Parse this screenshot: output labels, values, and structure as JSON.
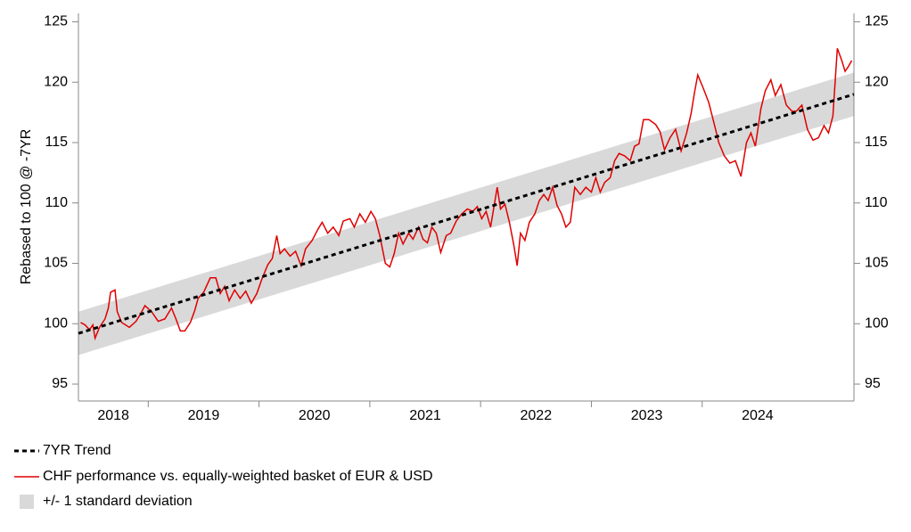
{
  "chart_data": {
    "type": "line",
    "ylabel": "Rebased to 100 @ -7YR",
    "xlim": [
      2018.37,
      2025.37
    ],
    "xticks": [
      {
        "value": 2018,
        "label": "2018"
      },
      {
        "value": 2019,
        "label": "2019"
      },
      {
        "value": 2020,
        "label": "2020"
      },
      {
        "value": 2021,
        "label": "2021"
      },
      {
        "value": 2022,
        "label": "2022"
      },
      {
        "value": 2023,
        "label": "2023"
      },
      {
        "value": 2024,
        "label": "2024"
      }
    ],
    "ylim": [
      93.6,
      125.7
    ],
    "yticks": [
      95,
      100,
      105,
      110,
      115,
      120,
      125
    ],
    "y2lim": [
      93.6,
      125.7
    ],
    "y2ticks": [
      95,
      100,
      105,
      110,
      115,
      120,
      125
    ],
    "band": {
      "name": "+/- 1 standard deviation",
      "color": "#d9d9d9",
      "x": [
        2018.37,
        2025.37
      ],
      "upper": [
        101.0,
        120.8
      ],
      "lower": [
        97.4,
        117.2
      ]
    },
    "series": [
      {
        "name": "7YR Trend",
        "color": "#000000",
        "dashed": true,
        "x": [
          2018.37,
          2025.37
        ],
        "values": [
          99.2,
          119.0
        ]
      },
      {
        "name": "CHF performance vs. equally-weighted basket of EUR & USD",
        "color": "#e00000",
        "dashed": false,
        "x": [
          2018.39,
          2018.43,
          2018.47,
          2018.5,
          2018.52,
          2018.56,
          2018.61,
          2018.64,
          2018.66,
          2018.7,
          2018.72,
          2018.76,
          2018.83,
          2018.89,
          2018.93,
          2018.97,
          2019.03,
          2019.09,
          2019.15,
          2019.21,
          2019.25,
          2019.29,
          2019.33,
          2019.38,
          2019.42,
          2019.45,
          2019.5,
          2019.56,
          2019.61,
          2019.65,
          2019.69,
          2019.73,
          2019.78,
          2019.83,
          2019.88,
          2019.93,
          2019.98,
          2020.03,
          2020.08,
          2020.12,
          2020.16,
          2020.19,
          2020.23,
          2020.28,
          2020.33,
          2020.38,
          2020.42,
          2020.48,
          2020.53,
          2020.57,
          2020.62,
          2020.67,
          2020.72,
          2020.76,
          2020.82,
          2020.86,
          2020.91,
          2020.96,
          2021.01,
          2021.05,
          2021.09,
          2021.14,
          2021.18,
          2021.22,
          2021.26,
          2021.3,
          2021.35,
          2021.39,
          2021.44,
          2021.48,
          2021.52,
          2021.56,
          2021.6,
          2021.64,
          2021.69,
          2021.73,
          2021.78,
          2021.83,
          2021.88,
          2021.93,
          2021.97,
          2022.01,
          2022.05,
          2022.09,
          2022.13,
          2022.15,
          2022.18,
          2022.22,
          2022.26,
          2022.3,
          2022.33,
          2022.36,
          2022.4,
          2022.44,
          2022.49,
          2022.53,
          2022.57,
          2022.61,
          2022.65,
          2022.69,
          2022.73,
          2022.77,
          2022.81,
          2022.85,
          2022.9,
          2022.95,
          2023.0,
          2023.04,
          2023.08,
          2023.12,
          2023.17,
          2023.21,
          2023.25,
          2023.3,
          2023.35,
          2023.39,
          2023.43,
          2023.47,
          2023.52,
          2023.58,
          2023.62,
          2023.66,
          2023.71,
          2023.76,
          2023.81,
          2023.86,
          2023.9,
          2023.93,
          2023.96,
          2024.01,
          2024.06,
          2024.11,
          2024.15,
          2024.2,
          2024.25,
          2024.3,
          2024.35,
          2024.4,
          2024.44,
          2024.48,
          2024.53,
          2024.57,
          2024.62,
          2024.66,
          2024.71,
          2024.76,
          2024.81,
          2024.85,
          2024.9,
          2024.95,
          2025.0,
          2025.05,
          2025.1,
          2025.14,
          2025.18,
          2025.22,
          2025.26,
          2025.29,
          2025.32,
          2025.35
        ],
        "values": [
          100.1,
          99.9,
          99.5,
          99.9,
          98.8,
          99.7,
          100.4,
          101.3,
          102.6,
          102.8,
          101.0,
          100.1,
          99.7,
          100.2,
          100.8,
          101.5,
          101.0,
          100.2,
          100.4,
          101.3,
          100.4,
          99.4,
          99.4,
          100.1,
          101.1,
          102.1,
          102.6,
          103.8,
          103.8,
          102.5,
          103.1,
          101.9,
          102.8,
          102.1,
          102.7,
          101.7,
          102.5,
          103.8,
          104.9,
          105.4,
          107.3,
          105.8,
          106.2,
          105.6,
          106.0,
          104.8,
          106.2,
          106.9,
          107.8,
          108.4,
          107.5,
          108.0,
          107.3,
          108.5,
          108.7,
          108.0,
          109.1,
          108.4,
          109.3,
          108.7,
          107.3,
          105.0,
          104.7,
          105.8,
          107.5,
          106.6,
          107.5,
          107.0,
          108.0,
          107.0,
          106.7,
          108.0,
          107.5,
          105.9,
          107.3,
          107.5,
          108.5,
          109.1,
          109.5,
          109.3,
          109.7,
          108.7,
          109.3,
          108.0,
          110.2,
          111.3,
          109.5,
          109.9,
          108.4,
          106.5,
          104.8,
          107.5,
          106.9,
          108.4,
          109.1,
          110.2,
          110.7,
          110.2,
          111.3,
          109.8,
          109.1,
          108.0,
          108.4,
          111.3,
          110.7,
          111.3,
          110.9,
          112.1,
          110.9,
          111.7,
          112.1,
          113.5,
          114.1,
          113.9,
          113.5,
          114.7,
          114.9,
          116.9,
          116.9,
          116.5,
          115.9,
          114.4,
          115.4,
          116.1,
          114.3,
          115.8,
          117.4,
          119.1,
          120.6,
          119.5,
          118.3,
          116.5,
          115.0,
          113.9,
          113.3,
          113.5,
          112.2,
          115.0,
          115.8,
          114.7,
          117.8,
          119.3,
          120.2,
          118.9,
          119.8,
          118.1,
          117.6,
          117.6,
          118.1,
          116.1,
          115.2,
          115.4,
          116.4,
          115.8,
          117.2,
          122.8,
          121.8,
          120.9,
          121.3,
          121.8
        ]
      }
    ]
  }
}
